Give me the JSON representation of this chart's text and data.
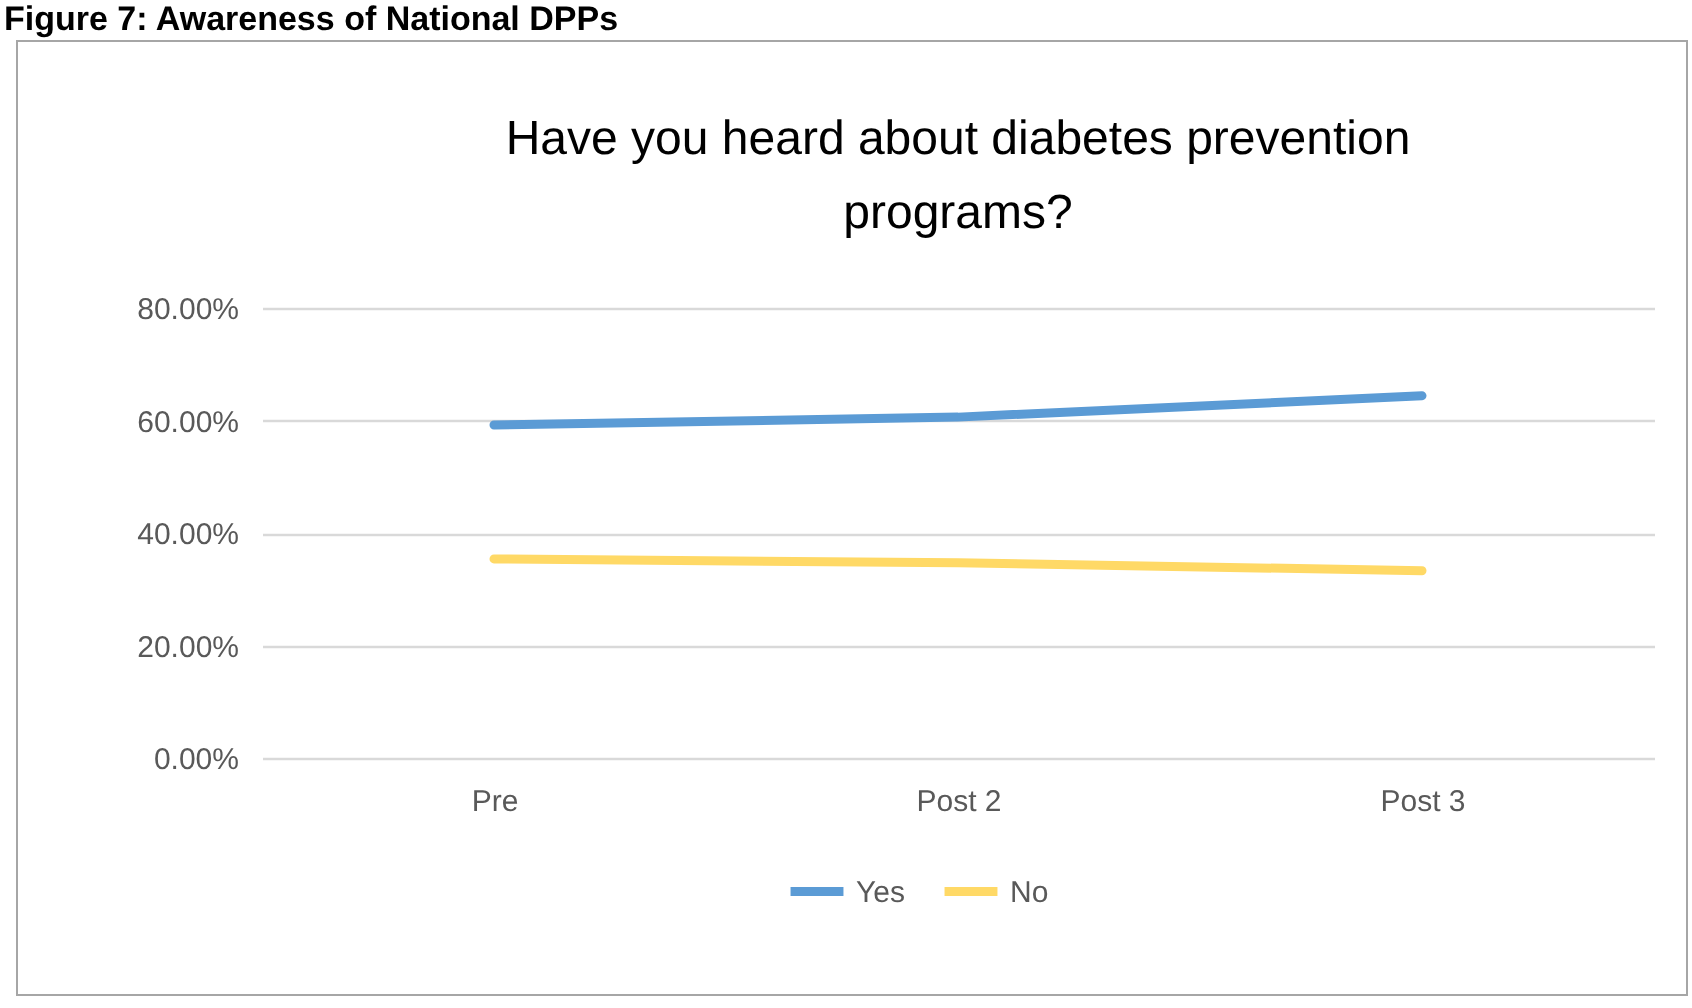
{
  "chart_data": {
    "type": "line",
    "title": "Have you heard about diabetes prevention programs?",
    "annotations": [
      "Figure 7: Awareness of National DPPs"
    ],
    "categories": [
      "Pre",
      "Post 2",
      "Post 3"
    ],
    "series": [
      {
        "name": "Yes",
        "color": "#5b9bd5",
        "values": [
          59.2,
          60.6,
          64.4
        ]
      },
      {
        "name": "No",
        "color": "#ffd966",
        "values": [
          35.4,
          34.7,
          33.3
        ]
      }
    ],
    "ylim": [
      0,
      80
    ],
    "yticks": [
      {
        "value": 0,
        "label": "0.00%"
      },
      {
        "value": 20,
        "label": "20.00%"
      },
      {
        "value": 40,
        "label": "40.00%"
      },
      {
        "value": 60,
        "label": "60.00%"
      },
      {
        "value": 80,
        "label": "80.00%"
      }
    ],
    "grid": "y",
    "legend": "bottom"
  }
}
